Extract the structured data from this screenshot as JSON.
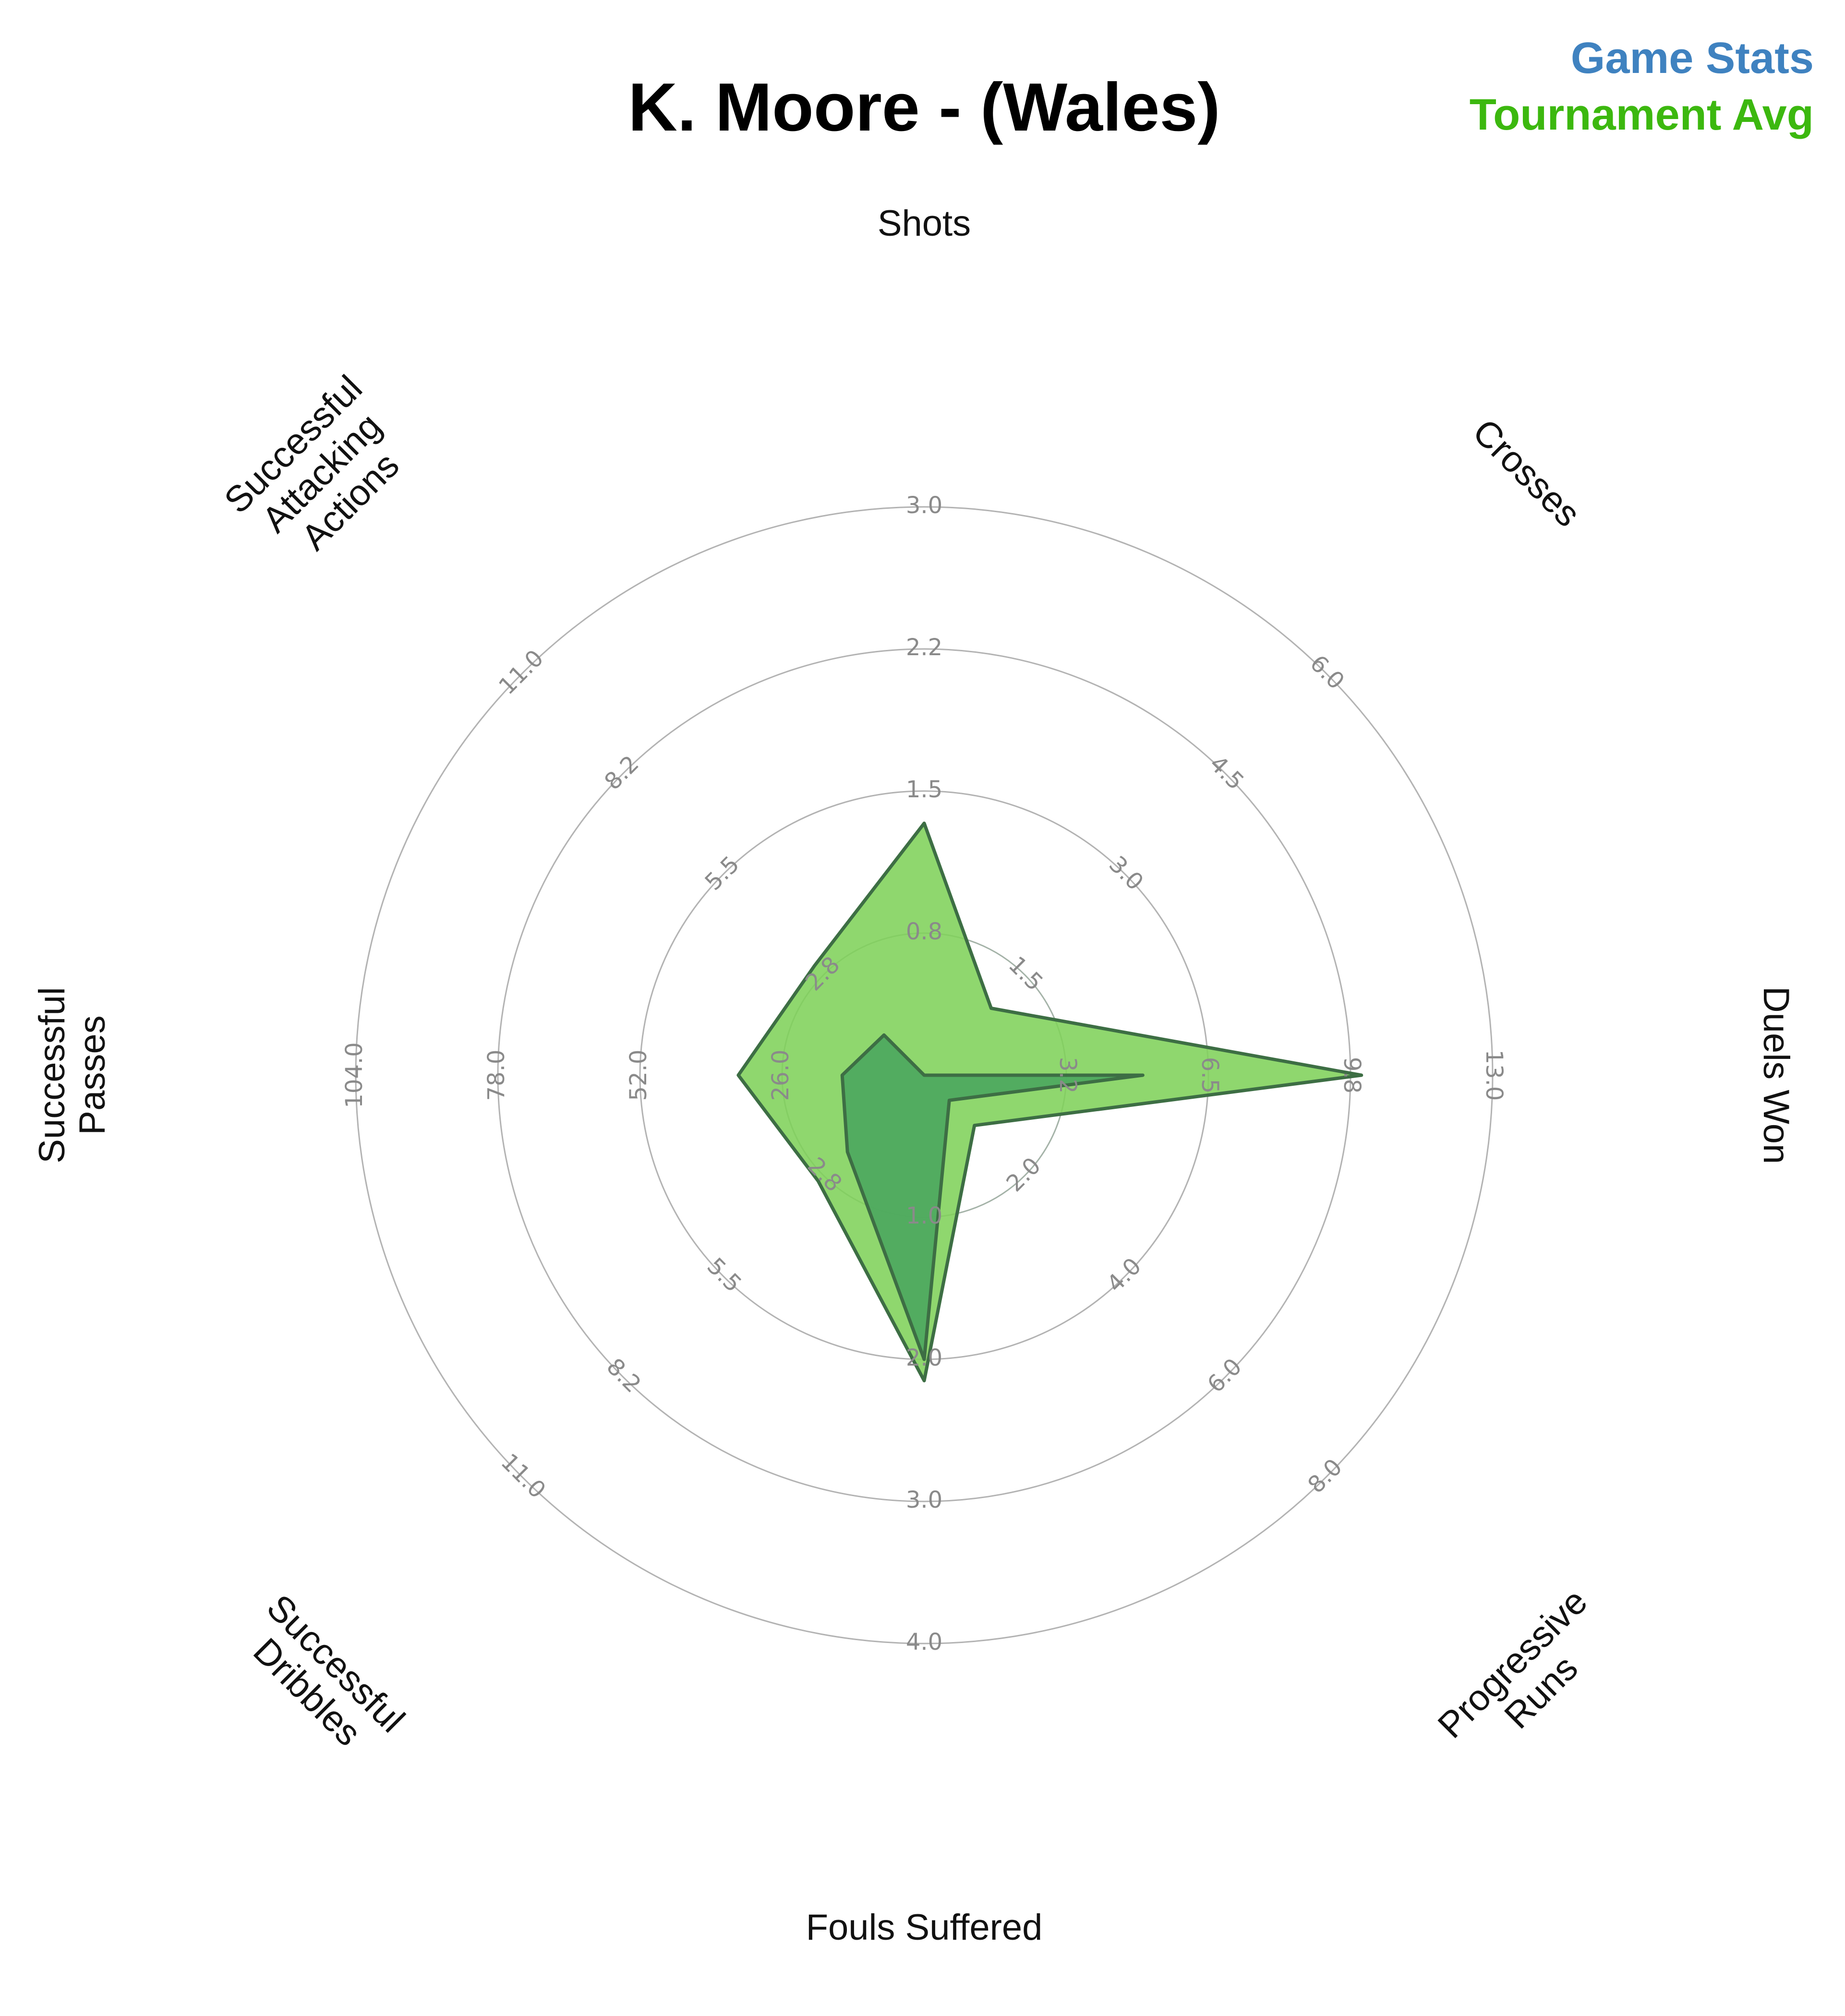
{
  "chart_data": {
    "type": "radar",
    "title": "K. Moore - (Wales)",
    "legend": [
      {
        "name": "Game Stats",
        "color": "#3f82c0"
      },
      {
        "name": "Tournament Avg",
        "color": "#3cb80f"
      }
    ],
    "legend_position": "top-right",
    "axes": [
      {
        "label": "Shots",
        "label_lines": [
          "Shots"
        ],
        "ticks": [
          "0.8",
          "1.5",
          "2.2",
          "3.0"
        ],
        "max": 3.0
      },
      {
        "label": "Crosses",
        "label_lines": [
          "Crosses"
        ],
        "ticks": [
          "1.5",
          "3.0",
          "4.5",
          "6.0"
        ],
        "max": 6.0
      },
      {
        "label": "Duels Won",
        "label_lines": [
          "Duels Won"
        ],
        "ticks": [
          "3.2",
          "6.5",
          "9.8",
          "13.0"
        ],
        "max": 13.0
      },
      {
        "label": "Progressive Runs",
        "label_lines": [
          "Progressive",
          "Runs"
        ],
        "ticks": [
          "2.0",
          "4.0",
          "6.0",
          "8.0"
        ],
        "max": 8.0
      },
      {
        "label": "Fouls Suffered",
        "label_lines": [
          "Fouls Suffered"
        ],
        "ticks": [
          "1.0",
          "2.0",
          "3.0",
          "4.0"
        ],
        "max": 4.0
      },
      {
        "label": "Successful Dribbles",
        "label_lines": [
          "Successful",
          "Dribbles"
        ],
        "ticks": [
          "2.8",
          "5.5",
          "8.2",
          "11.0"
        ],
        "max": 11.0
      },
      {
        "label": "Successful Passes",
        "label_lines": [
          "Successful",
          "Passes"
        ],
        "ticks": [
          "26.0",
          "52.0",
          "78.0",
          "104.0"
        ],
        "max": 104.0
      },
      {
        "label": "Successful Attacking Actions",
        "label_lines": [
          "Successful",
          "Attacking",
          "Actions"
        ],
        "ticks": [
          "2.8",
          "5.5",
          "8.2",
          "11.0"
        ],
        "max": 11.0
      }
    ],
    "series": [
      {
        "name": "Tournament Avg",
        "color": "#7fd15a",
        "values": [
          1.33,
          1.0,
          10.0,
          1.0,
          2.15,
          2.9,
          34.0,
          3.0
        ]
      },
      {
        "name": "Game Stats",
        "color": "#4aa65e",
        "values": [
          0.0,
          0.0,
          5.0,
          0.5,
          2.0,
          2.1,
          15.0,
          1.1
        ]
      }
    ],
    "grid": true
  }
}
